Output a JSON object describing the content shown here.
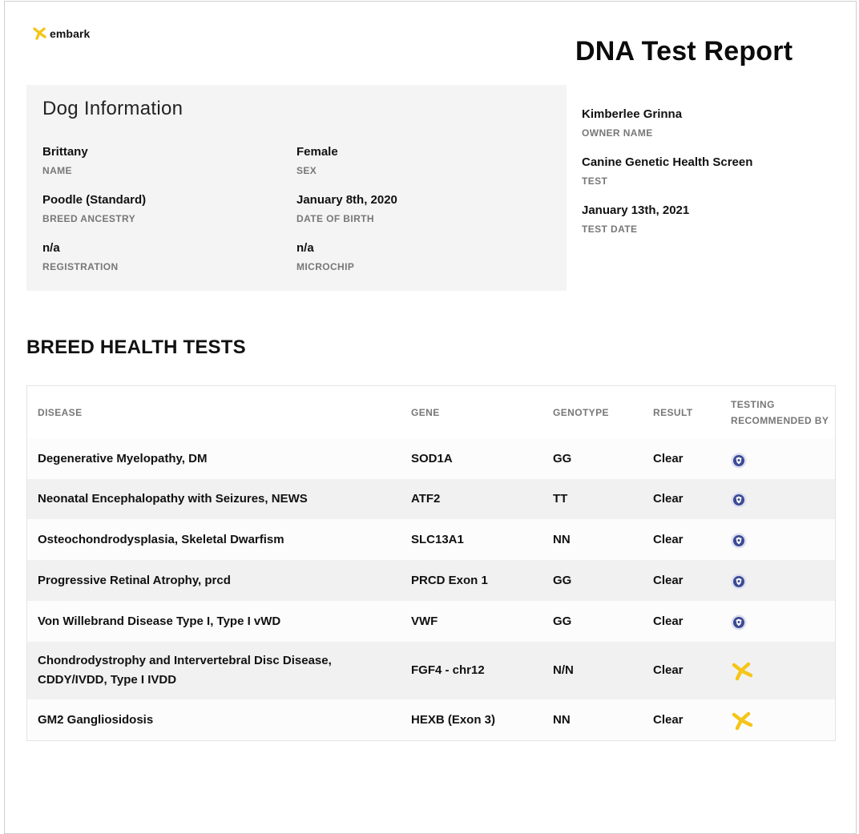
{
  "brand": {
    "name": "embark",
    "accent": "#f5c518"
  },
  "report_title": "DNA Test Report",
  "dog_info": {
    "title": "Dog Information",
    "fields": [
      {
        "value": "Brittany",
        "label": "NAME"
      },
      {
        "value": "Female",
        "label": "SEX"
      },
      {
        "value": "Poodle (Standard)",
        "label": "BREED ANCESTRY"
      },
      {
        "value": "January 8th, 2020",
        "label": "DATE OF BIRTH"
      },
      {
        "value": "n/a",
        "label": "REGISTRATION"
      },
      {
        "value": "n/a",
        "label": "MICROCHIP"
      }
    ]
  },
  "owner_info": {
    "fields": [
      {
        "value": "Kimberlee Grinna",
        "label": "OWNER NAME"
      },
      {
        "value": "Canine Genetic Health Screen",
        "label": "TEST"
      },
      {
        "value": "January 13th, 2021",
        "label": "TEST DATE"
      }
    ]
  },
  "health_tests": {
    "heading": "BREED HEALTH TESTS",
    "columns": {
      "disease": "DISEASE",
      "gene": "GENE",
      "genotype": "GENOTYPE",
      "result": "RESULT",
      "recommended_line1": "TESTING",
      "recommended_line2": "RECOMMENDED BY"
    },
    "rows": [
      {
        "disease": "Degenerative Myelopathy, DM",
        "gene": "SOD1A",
        "genotype": "GG",
        "result": "Clear",
        "recommended_by_icon": "breed-club-seal-icon"
      },
      {
        "disease": "Neonatal Encephalopathy with Seizures, NEWS",
        "gene": "ATF2",
        "genotype": "TT",
        "result": "Clear",
        "recommended_by_icon": "breed-club-seal-icon"
      },
      {
        "disease": "Osteochondrodysplasia, Skeletal Dwarfism",
        "gene": "SLC13A1",
        "genotype": "NN",
        "result": "Clear",
        "recommended_by_icon": "breed-club-seal-icon"
      },
      {
        "disease": "Progressive Retinal Atrophy, prcd",
        "gene": "PRCD Exon 1",
        "genotype": "GG",
        "result": "Clear",
        "recommended_by_icon": "breed-club-seal-icon"
      },
      {
        "disease": "Von Willebrand Disease Type I, Type I vWD",
        "gene": "VWF",
        "genotype": "GG",
        "result": "Clear",
        "recommended_by_icon": "breed-club-seal-icon"
      },
      {
        "disease_line1": "Chondrodystrophy and Intervertebral Disc Disease,",
        "disease_line2": "CDDY/IVDD, Type I IVDD",
        "gene": "FGF4 - chr12",
        "genotype": "N/N",
        "result": "Clear",
        "recommended_by_icon": "embark-logo-icon"
      },
      {
        "disease": "GM2 Gangliosidosis",
        "gene": "HEXB (Exon 3)",
        "genotype": "NN",
        "result": "Clear",
        "recommended_by_icon": "embark-logo-icon"
      }
    ]
  }
}
